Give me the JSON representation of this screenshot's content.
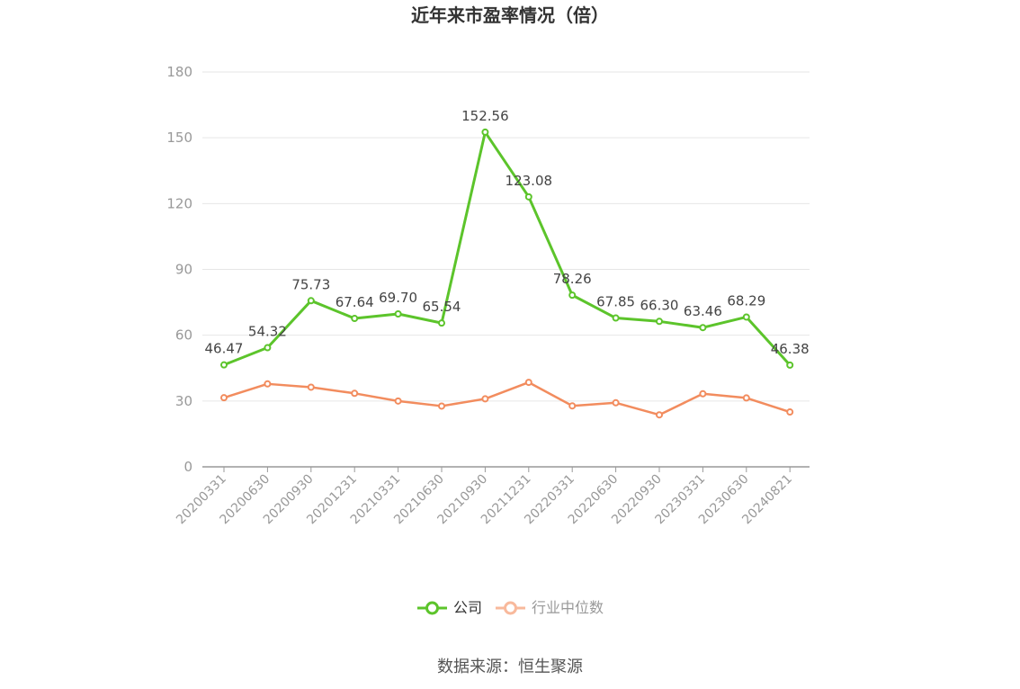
{
  "chart_data": {
    "type": "line",
    "title": "近年来市盈率情况（倍）",
    "categories": [
      "20200331",
      "20200630",
      "20200930",
      "20201231",
      "20210331",
      "20210630",
      "20210930",
      "20211231",
      "20220331",
      "20220630",
      "20220930",
      "20230331",
      "20230630",
      "20240821"
    ],
    "series": [
      {
        "name": "公司",
        "color": "#5cc42b",
        "values": [
          46.47,
          54.32,
          75.73,
          67.64,
          69.7,
          65.54,
          152.56,
          123.08,
          78.26,
          67.85,
          66.3,
          63.46,
          68.29,
          46.38
        ],
        "labels": [
          "46.47",
          "54.32",
          "75.73",
          "67.64",
          "69.70",
          "65.54",
          "152.56",
          "123.08",
          "78.26",
          "67.85",
          "66.30",
          "63.46",
          "68.29",
          "46.38"
        ]
      },
      {
        "name": "行业中位数",
        "color": "#f28c5e",
        "legend_color": "#f8b99c",
        "values": [
          31.5,
          37.8,
          36.3,
          33.5,
          30.0,
          27.7,
          31.0,
          38.5,
          27.8,
          29.2,
          23.7,
          33.3,
          31.4,
          25.0
        ]
      }
    ],
    "ylim": [
      0,
      180
    ],
    "yticks": [
      "0",
      "30",
      "60",
      "90",
      "120",
      "150",
      "180"
    ],
    "grid": true,
    "legend_position": "bottom-center"
  },
  "source_text": "数据来源：恒生聚源"
}
